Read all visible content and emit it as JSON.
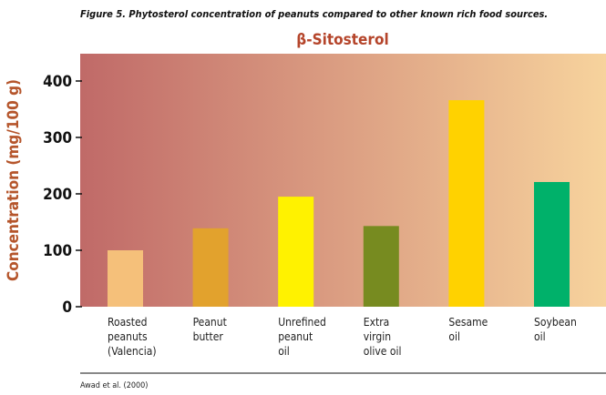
{
  "figure_caption": "Figure 5. Phytosterol concentration of peanuts compared to other known rich food sources.",
  "source": "Awad et al. (2000)",
  "chart_data": {
    "type": "bar",
    "title": "β-Sitosterol",
    "xlabel": "",
    "ylabel": "Concentration (mg/100 g)",
    "ylim": [
      0,
      420
    ],
    "yticks": [
      "0",
      "100",
      "200",
      "300",
      "400"
    ],
    "grid": false,
    "background_gradient": [
      "#c06a68",
      "#f7d39d"
    ],
    "categories": [
      [
        "Roasted",
        "peanuts",
        "(Valencia)"
      ],
      [
        "Peanut",
        "butter"
      ],
      [
        "Unrefined",
        "peanut",
        "oil"
      ],
      [
        "Extra",
        "virgin",
        "olive oil"
      ],
      [
        "Sesame",
        "oil"
      ],
      [
        "Soybean",
        "oil"
      ]
    ],
    "values": [
      100,
      139,
      195,
      143,
      366,
      221
    ],
    "colors": [
      "#f5c07a",
      "#e2a22d",
      "#fff200",
      "#778b20",
      "#ffd200",
      "#00b16a"
    ]
  }
}
